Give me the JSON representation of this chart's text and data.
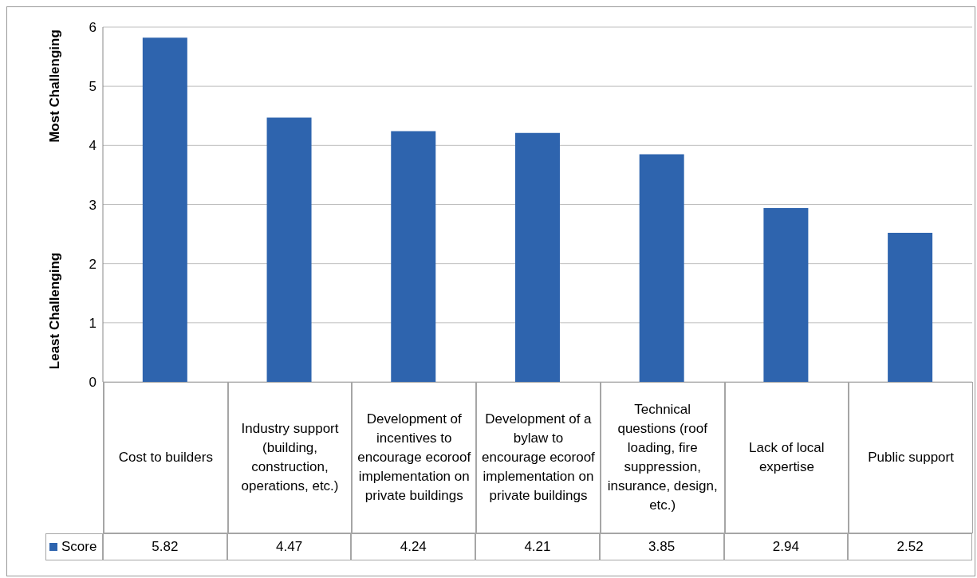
{
  "chart_data": {
    "type": "bar",
    "ylabel": "Most Challenging",
    "annotations": [
      "Least Challenging"
    ],
    "categories": [
      "Cost to builders",
      "Industry support (building, construction, operations, etc.)",
      "Development of incentives to encourage ecoroof implementation on private buildings",
      "Development of a bylaw to encourage ecoroof implementation on private buildings",
      "Technical questions (roof loading, fire suppression, insurance, design, etc.)",
      "Lack of local expertise",
      "Public support"
    ],
    "series": [
      {
        "name": "Score",
        "color": "#2e64ae",
        "values": [
          5.82,
          4.47,
          4.24,
          4.21,
          3.85,
          2.94,
          2.52
        ]
      }
    ],
    "ylim": [
      0,
      6
    ],
    "yticks": [
      0,
      1,
      2,
      3,
      4,
      5,
      6
    ],
    "grid": "y",
    "legend": "bottom",
    "data_labels": true
  }
}
